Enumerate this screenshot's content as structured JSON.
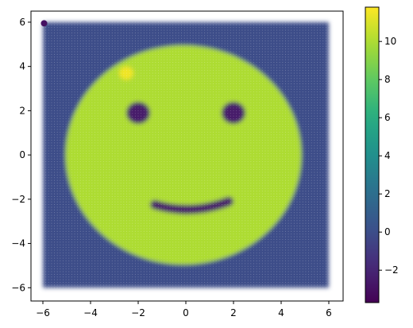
{
  "chart_data": {
    "type": "heatmap",
    "title": "",
    "xlabel": "",
    "ylabel": "",
    "xlim": [
      -6.5,
      6.6
    ],
    "ylim": [
      -6.6,
      6.5
    ],
    "x_ticks": [
      -6,
      -4,
      -2,
      0,
      2,
      4,
      6
    ],
    "y_ticks": [
      -6,
      -4,
      -2,
      0,
      2,
      4,
      6
    ],
    "x_tick_labels": [
      "−6",
      "−4",
      "−2",
      "0",
      "2",
      "4",
      "6"
    ],
    "y_tick_labels": [
      "−6",
      "−4",
      "−2",
      "0",
      "2",
      "4",
      "6"
    ],
    "grid": false,
    "colormap": "viridis",
    "grid_extent": {
      "x": [
        -6,
        6
      ],
      "y": [
        -6,
        6
      ],
      "samples_per_axis": 100
    },
    "background_value": 0,
    "face": {
      "shape": "circle",
      "center": [
        -0.1,
        0.0
      ],
      "radius": 4.95,
      "value": 10.0
    },
    "eyes": [
      {
        "center": [
          -2.0,
          1.9
        ],
        "radius": 0.5,
        "value": -2.5
      },
      {
        "center": [
          2.0,
          1.9
        ],
        "radius": 0.5,
        "value": -2.5
      }
    ],
    "mouth": {
      "x_range": [
        -1.3,
        1.8
      ],
      "center_y": -2.5,
      "curve": 0.25,
      "thickness": 0.42,
      "value": -2.5
    },
    "highlight": {
      "center": [
        -2.5,
        3.7
      ],
      "radius": 0.3,
      "value": 11.5
    },
    "corner_marker": {
      "center": [
        -5.95,
        5.95
      ],
      "value": -3.0
    },
    "colorbar": {
      "range": [
        -3.7,
        11.8
      ],
      "ticks": [
        -2,
        0,
        2,
        4,
        6,
        8,
        10
      ],
      "tick_labels": [
        "−2",
        "0",
        "2",
        "4",
        "6",
        "8",
        "10"
      ]
    }
  }
}
